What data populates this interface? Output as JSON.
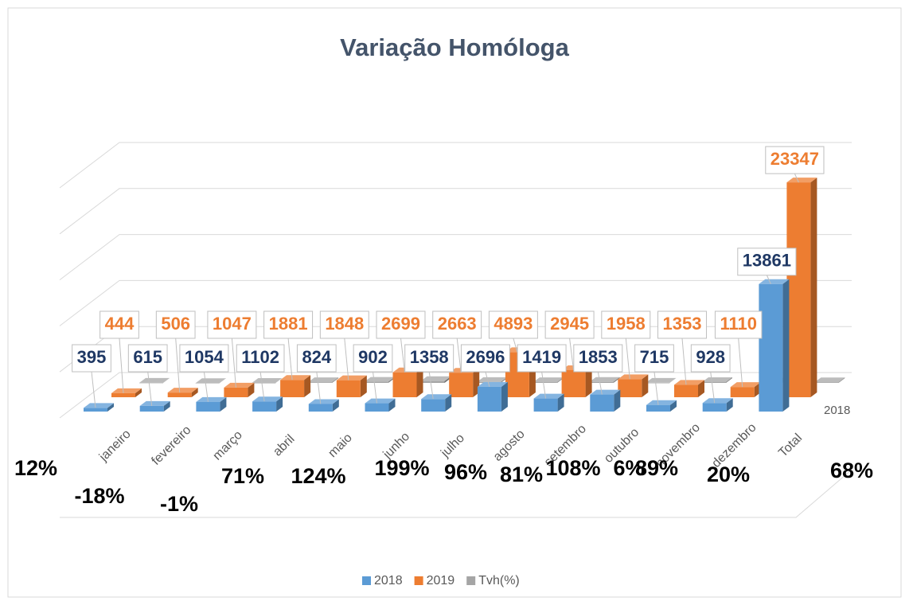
{
  "chart_data": {
    "type": "bar3d",
    "title": "Variação Homóloga",
    "categories": [
      "janeiro",
      "fevereiro",
      "março",
      "abril",
      "maio",
      "junho",
      "julho",
      "agosto",
      "setembro",
      "outubro",
      "novembro",
      "dezembro",
      "Total"
    ],
    "series": [
      {
        "name": "2018",
        "color": "#5b9bd5",
        "values": [
          395,
          615,
          1054,
          1102,
          824,
          902,
          1358,
          2696,
          1419,
          1853,
          715,
          928,
          13861
        ]
      },
      {
        "name": "2019",
        "color": "#ed7d31",
        "values": [
          444,
          506,
          1047,
          1881,
          1848,
          2699,
          2663,
          4893,
          2945,
          1958,
          1353,
          1110,
          23347
        ]
      },
      {
        "name": "Tvh(%)",
        "color": "#a5a5a5",
        "values": [
          12,
          -18,
          -1,
          71,
          124,
          199,
          96,
          81,
          108,
          6,
          89,
          20,
          68
        ],
        "value_labels": [
          "12%",
          "-18%",
          "-1%",
          "71%",
          "124%",
          "199%",
          "96%",
          "81%",
          "108%",
          "6%",
          "89%",
          "20%",
          "68%"
        ]
      }
    ],
    "ylim": [
      0,
      25000
    ],
    "yticks": [
      0,
      5000,
      10000,
      15000,
      20000,
      25000
    ],
    "grid": true,
    "legend": "bottom"
  }
}
